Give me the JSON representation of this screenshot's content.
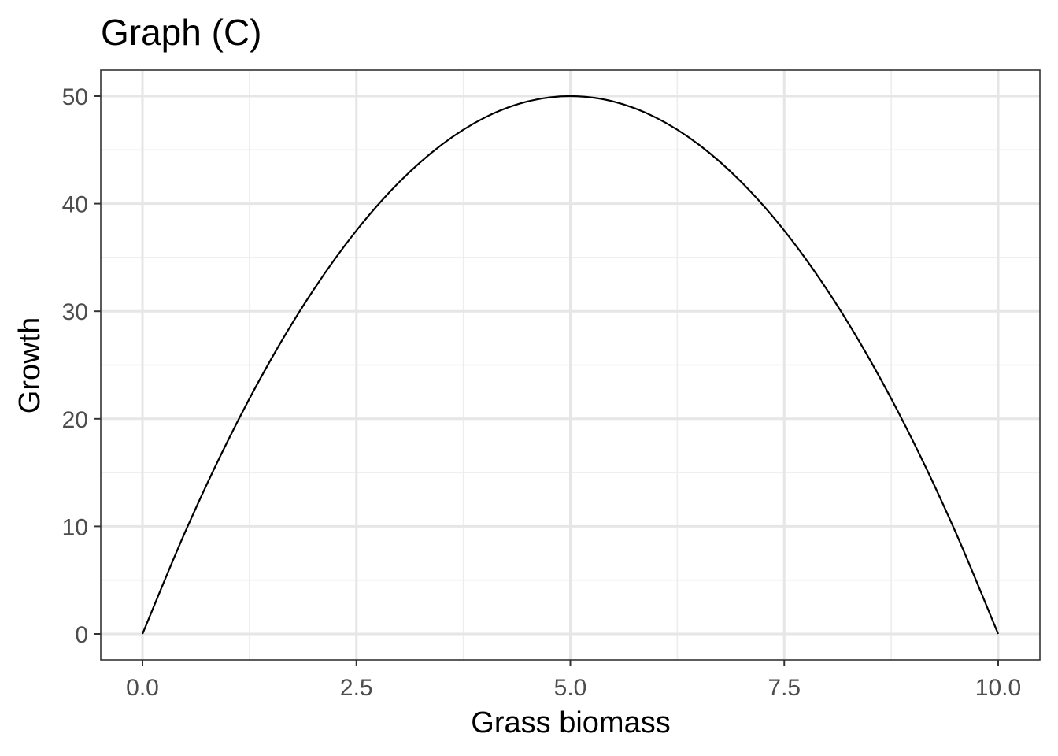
{
  "chart_data": {
    "type": "line",
    "title": "Graph (C)",
    "xlabel": "Grass biomass",
    "ylabel": "Growth",
    "xlim": [
      0,
      10
    ],
    "ylim": [
      0,
      50
    ],
    "x_ticks": [
      0,
      2.5,
      5,
      7.5,
      10
    ],
    "x_tick_labels": [
      "0.0",
      "2.5",
      "5.0",
      "7.5",
      "10.0"
    ],
    "y_ticks": [
      0,
      10,
      20,
      30,
      40,
      50
    ],
    "y_tick_labels": [
      "0",
      "10",
      "20",
      "30",
      "40",
      "50"
    ],
    "grid": true,
    "series": [
      {
        "color": "#000000",
        "x": [
          0,
          0.5,
          1,
          1.5,
          2,
          2.5,
          3,
          3.5,
          4,
          4.5,
          5,
          5.5,
          6,
          6.5,
          7,
          7.5,
          8,
          8.5,
          9,
          9.5,
          10
        ],
        "y": [
          0,
          9.5,
          18,
          25.5,
          32,
          37.5,
          42,
          45.5,
          48,
          49.5,
          50,
          49.5,
          48,
          45.5,
          42,
          37.5,
          32,
          25.5,
          18,
          9.5,
          0
        ]
      }
    ]
  }
}
